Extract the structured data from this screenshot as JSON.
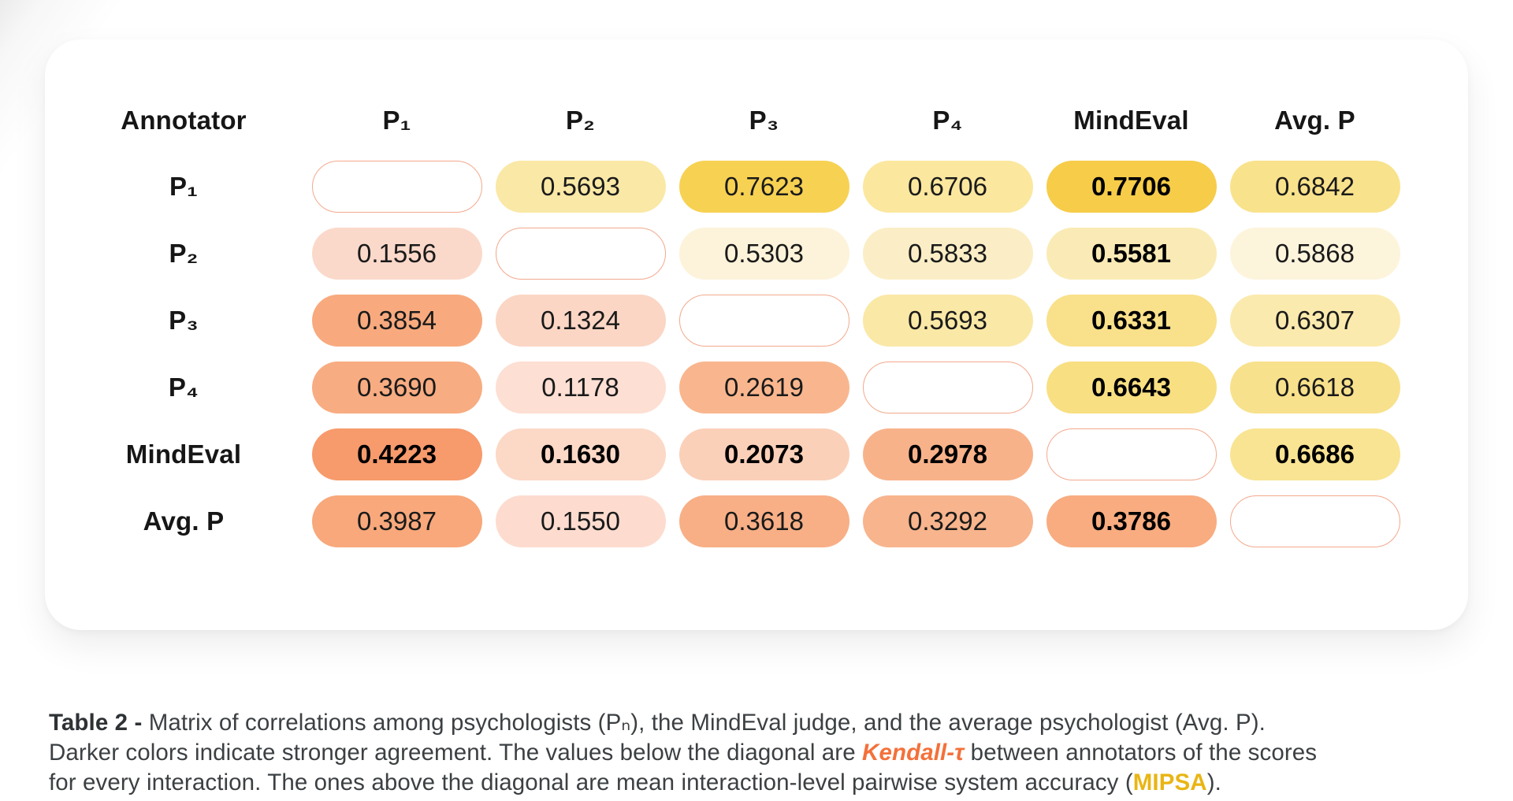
{
  "table": {
    "header": [
      "Annotator",
      "P₁",
      "P₂",
      "P₃",
      "P₄",
      "MindEval",
      "Avg. P"
    ],
    "rows": [
      {
        "label": "P₁",
        "cells": [
          {
            "diag": true
          },
          {
            "value": "0.5693",
            "bg": "#FAE8A6",
            "bold": false
          },
          {
            "value": "0.7623",
            "bg": "#F7D152",
            "bold": false
          },
          {
            "value": "0.6706",
            "bg": "#FBE79E",
            "bold": false
          },
          {
            "value": "0.7706",
            "bg": "#F6CC49",
            "bold": true
          },
          {
            "value": "0.6842",
            "bg": "#F9E28C",
            "bold": false
          }
        ]
      },
      {
        "label": "P₂",
        "cells": [
          {
            "value": "0.1556",
            "bg": "#FBD9CA",
            "bold": false
          },
          {
            "diag": true
          },
          {
            "value": "0.5303",
            "bg": "#FDF3DA",
            "bold": false
          },
          {
            "value": "0.5833",
            "bg": "#FBEEC6",
            "bold": false
          },
          {
            "value": "0.5581",
            "bg": "#FAEBB6",
            "bold": true
          },
          {
            "value": "0.5868",
            "bg": "#FDF4DC",
            "bold": false
          }
        ]
      },
      {
        "label": "P₃",
        "cells": [
          {
            "value": "0.3854",
            "bg": "#F8AA7E",
            "bold": false
          },
          {
            "value": "0.1324",
            "bg": "#FBD6C5",
            "bold": false
          },
          {
            "diag": true
          },
          {
            "value": "0.5693",
            "bg": "#FAE8A6",
            "bold": false
          },
          {
            "value": "0.6331",
            "bg": "#F9E08A",
            "bold": true
          },
          {
            "value": "0.6307",
            "bg": "#FBEAAE",
            "bold": false
          }
        ]
      },
      {
        "label": "P₄",
        "cells": [
          {
            "value": "0.3690",
            "bg": "#F8AC82",
            "bold": false
          },
          {
            "value": "0.1178",
            "bg": "#FDDFD3",
            "bold": false
          },
          {
            "value": "0.2619",
            "bg": "#F9B68E",
            "bold": false
          },
          {
            "diag": true
          },
          {
            "value": "0.6643",
            "bg": "#F8DF82",
            "bold": true
          },
          {
            "value": "0.6618",
            "bg": "#F8E18C",
            "bold": false
          }
        ]
      },
      {
        "label": "MindEval",
        "cells": [
          {
            "value": "0.4223",
            "bg": "#F79A6C",
            "bold": true
          },
          {
            "value": "0.1630",
            "bg": "#FCD8C6",
            "bold": true
          },
          {
            "value": "0.2073",
            "bg": "#FBD0B9",
            "bold": true
          },
          {
            "value": "0.2978",
            "bg": "#F8B28A",
            "bold": true
          },
          {
            "diag": true
          },
          {
            "value": "0.6686",
            "bg": "#F9E493",
            "bold": true
          }
        ]
      },
      {
        "label": "Avg. P",
        "cells": [
          {
            "value": "0.3987",
            "bg": "#F8A87B",
            "bold": false
          },
          {
            "value": "0.1550",
            "bg": "#FDDCCF",
            "bold": false
          },
          {
            "value": "0.3618",
            "bg": "#F8AF86",
            "bold": false
          },
          {
            "value": "0.3292",
            "bg": "#F8B48D",
            "bold": false
          },
          {
            "value": "0.3786",
            "bg": "#F8AC80",
            "bold": true
          },
          {
            "diag": true
          }
        ]
      }
    ]
  },
  "colors": {
    "diagonal_border": "#F3A98D",
    "kendall_accent": "#F4703A",
    "mipsa_accent": "#E9B514",
    "yellow_scale_max": "#F6CC49",
    "orange_scale_max": "#F79A6C",
    "card_background": "#FFFFFF"
  },
  "caption": {
    "lines": [
      [
        {
          "text": "Table 2 - ",
          "style": "bold"
        },
        {
          "text": "Matrix of correlations among psychologists (Pₙ), the MindEval judge, and the average psychologist (Avg. P).",
          "style": "normal"
        }
      ],
      [
        {
          "text": "Darker colors indicate stronger agreement. The values below the diagonal are ",
          "style": "normal"
        },
        {
          "text": "Kendall-τ",
          "style": "kendall"
        },
        {
          "text": " between annotators of the scores",
          "style": "normal"
        }
      ],
      [
        {
          "text": "for every interaction. The ones above the diagonal are mean interaction-level pairwise system accuracy (",
          "style": "normal"
        },
        {
          "text": "MIPSA",
          "style": "mipsa"
        },
        {
          "text": ").",
          "style": "normal"
        }
      ]
    ]
  },
  "chart_data": {
    "type": "heatmap",
    "title": "Table 2 - Matrix of correlations among psychologists, the MindEval judge, and the average psychologist",
    "rows": [
      "P₁",
      "P₂",
      "P₃",
      "P₄",
      "MindEval",
      "Avg. P"
    ],
    "cols": [
      "P₁",
      "P₂",
      "P₃",
      "P₄",
      "MindEval",
      "Avg. P"
    ],
    "values": [
      [
        null,
        0.5693,
        0.7623,
        0.6706,
        0.7706,
        0.6842
      ],
      [
        0.1556,
        null,
        0.5303,
        0.5833,
        0.5581,
        0.5868
      ],
      [
        0.3854,
        0.1324,
        null,
        0.5693,
        0.6331,
        0.6307
      ],
      [
        0.369,
        0.1178,
        0.2619,
        null,
        0.6643,
        0.6618
      ],
      [
        0.4223,
        0.163,
        0.2073,
        0.2978,
        null,
        0.6686
      ],
      [
        0.3987,
        0.155,
        0.3618,
        0.3292,
        0.3786,
        null
      ]
    ],
    "lower_triangle_metric": "Kendall-τ between annotators of the scores for every interaction",
    "upper_triangle_metric": "mean interaction-level pairwise system accuracy (MIPSA)",
    "legend_position": "none",
    "grid": false
  }
}
